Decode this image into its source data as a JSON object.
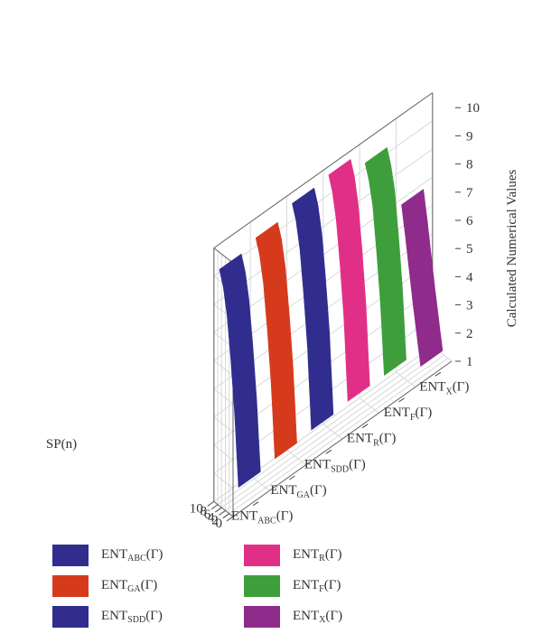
{
  "chart_data": {
    "type": "surface3d",
    "ylabel_right": "Calculated Numerical Values",
    "xlabel_left": "SP(n)",
    "z_ticks": [
      "1",
      "2",
      "3",
      "4",
      "5",
      "6",
      "7",
      "8",
      "9",
      "10"
    ],
    "sp_ticks": [
      "0",
      "2",
      "4",
      "6",
      "8",
      "10"
    ],
    "zlim": [
      1,
      10
    ],
    "splim": [
      0,
      10
    ],
    "series": [
      {
        "name": "ENT_ABC(Γ)",
        "main": "ENT",
        "sub": "ABC",
        "arg": "(Γ)",
        "color": "#302D8E",
        "sp": [
          0,
          2,
          4,
          6,
          8,
          10
        ],
        "values": [
          1.9,
          4.4,
          6.2,
          7.7,
          8.6,
          9.1
        ]
      },
      {
        "name": "ENT_GA(Γ)",
        "main": "ENT",
        "sub": "GA",
        "arg": "(Γ)",
        "color": "#D63A1C",
        "sp": [
          0,
          2,
          4,
          6,
          8,
          10
        ],
        "values": [
          2.0,
          4.6,
          6.4,
          7.9,
          8.8,
          9.3
        ]
      },
      {
        "name": "ENT_SDD(Γ)",
        "main": "ENT",
        "sub": "SDD",
        "arg": "(Γ)",
        "color": "#302D8E",
        "sp": [
          0,
          2,
          4,
          6,
          8,
          10
        ],
        "values": [
          2.1,
          4.9,
          6.7,
          8.2,
          9.1,
          9.6
        ]
      },
      {
        "name": "ENT_R(Γ)",
        "main": "ENT",
        "sub": "R",
        "arg": "(Γ)",
        "color": "#E12F87",
        "sp": [
          0,
          2,
          4,
          6,
          8,
          10
        ],
        "values": [
          2.2,
          5.0,
          6.8,
          8.3,
          9.2,
          9.7
        ]
      },
      {
        "name": "ENT_F(Γ)",
        "main": "ENT",
        "sub": "F",
        "arg": "(Γ)",
        "color": "#3E9E3B",
        "sp": [
          0,
          2,
          4,
          6,
          8,
          10
        ],
        "values": [
          2.2,
          4.7,
          6.4,
          7.9,
          8.7,
          9.2
        ]
      },
      {
        "name": "ENT_X(Γ)",
        "main": "ENT",
        "sub": "X",
        "arg": "(Γ)",
        "color": "#8E2B8B",
        "sp": [
          0,
          2,
          4,
          6,
          8,
          10
        ],
        "values": [
          1.6,
          2.6,
          3.6,
          4.7,
          5.8,
          6.8
        ]
      }
    ]
  }
}
